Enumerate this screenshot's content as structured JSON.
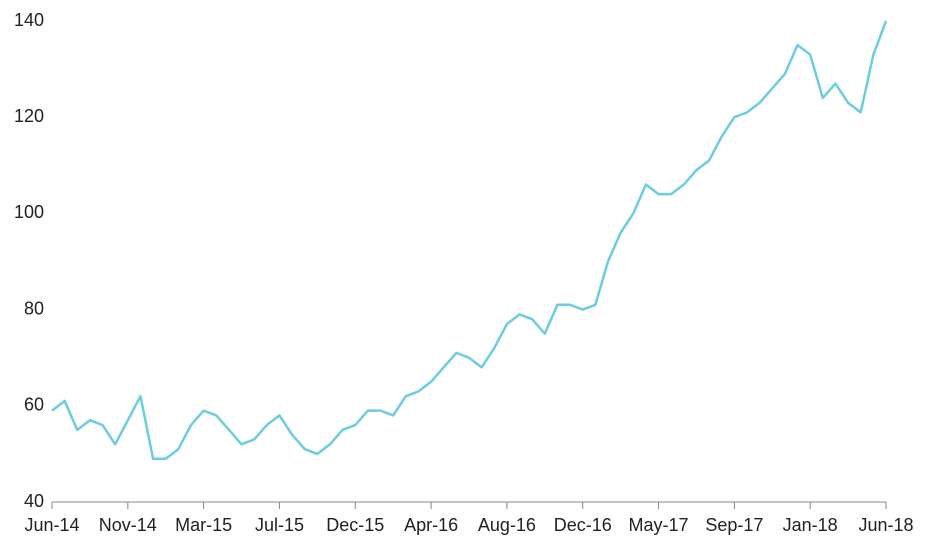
{
  "chart_data": {
    "type": "line",
    "categories": [
      "Jun-14",
      null,
      null,
      null,
      null,
      null,
      "Nov-14",
      null,
      null,
      null,
      null,
      null,
      "Mar-15",
      null,
      null,
      null,
      null,
      null,
      "Jul-15",
      null,
      null,
      null,
      null,
      null,
      "Dec-15",
      null,
      null,
      null,
      null,
      null,
      "Apr-16",
      null,
      null,
      null,
      null,
      null,
      "Aug-16",
      null,
      null,
      null,
      null,
      null,
      "Dec-16",
      null,
      null,
      null,
      null,
      null,
      "May-17",
      null,
      null,
      null,
      null,
      null,
      "Sep-17",
      null,
      null,
      null,
      null,
      null,
      "Jan-18",
      null,
      null,
      null,
      null,
      null,
      "Jun-18"
    ],
    "series": [
      {
        "color": "#6dcde0",
        "values": [
          59,
          61,
          55,
          57,
          56,
          52,
          57,
          62,
          49,
          49,
          51,
          56,
          59,
          58,
          55,
          52,
          53,
          56,
          58,
          54,
          51,
          50,
          52,
          55,
          56,
          59,
          59,
          58,
          62,
          63,
          65,
          68,
          71,
          70,
          68,
          72,
          77,
          79,
          78,
          75,
          81,
          81,
          80,
          81,
          90,
          96,
          100,
          106,
          104,
          104,
          106,
          109,
          111,
          116,
          120,
          121,
          123,
          126,
          129,
          135,
          133,
          124,
          127,
          123,
          121,
          133,
          140
        ]
      }
    ],
    "ylim": [
      40,
      140
    ],
    "yticks": [
      40,
      60,
      80,
      100,
      120,
      140
    ]
  }
}
